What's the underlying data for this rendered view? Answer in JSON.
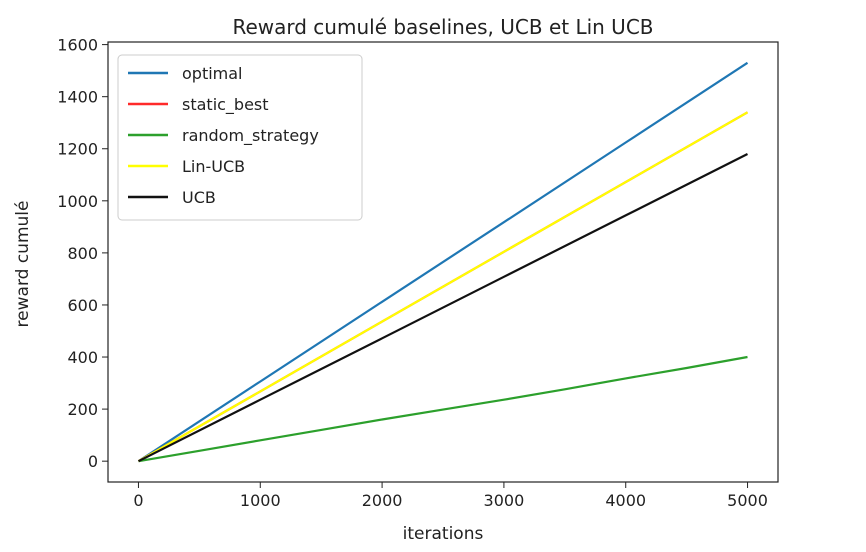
{
  "chart_data": {
    "type": "line",
    "title": "Reward cumulé baselines, UCB et Lin UCB",
    "xlabel": "iterations",
    "ylabel": "reward cumulé",
    "xlim": [
      -250,
      5250
    ],
    "ylim": [
      -80,
      1610
    ],
    "xticks": [
      "0",
      "1000",
      "2000",
      "3000",
      "4000",
      "5000"
    ],
    "yticks": [
      "0",
      "200",
      "400",
      "600",
      "800",
      "1000",
      "1200",
      "1400",
      "1600"
    ],
    "grid": false,
    "legend_position": "upper-left",
    "series": [
      {
        "name": "optimal",
        "color": "#1f77b4",
        "x": [
          0,
          1000,
          2000,
          3000,
          4000,
          5000
        ],
        "y": [
          0,
          306,
          612,
          918,
          1224,
          1530
        ]
      },
      {
        "name": "static_best",
        "color": "#ff2a2a",
        "x": [
          0,
          1000,
          2000,
          3000,
          4000,
          5000
        ],
        "y": [
          0,
          268,
          536,
          804,
          1072,
          1340
        ]
      },
      {
        "name": "random_strategy",
        "color": "#2ca02c",
        "x": [
          0,
          500,
          1000,
          1500,
          2000,
          2500,
          3000,
          3500,
          4000,
          4500,
          5000
        ],
        "y": [
          0,
          40,
          80,
          120,
          160,
          198,
          236,
          276,
          318,
          358,
          400
        ]
      },
      {
        "name": "Lin-UCB",
        "color": "#ffff00",
        "x": [
          0,
          1000,
          2000,
          3000,
          4000,
          5000
        ],
        "y": [
          0,
          268,
          536,
          804,
          1072,
          1340
        ]
      },
      {
        "name": "UCB",
        "color": "#111111",
        "x": [
          0,
          1000,
          2000,
          3000,
          4000,
          5000
        ],
        "y": [
          0,
          236,
          472,
          708,
          944,
          1180
        ]
      }
    ]
  }
}
